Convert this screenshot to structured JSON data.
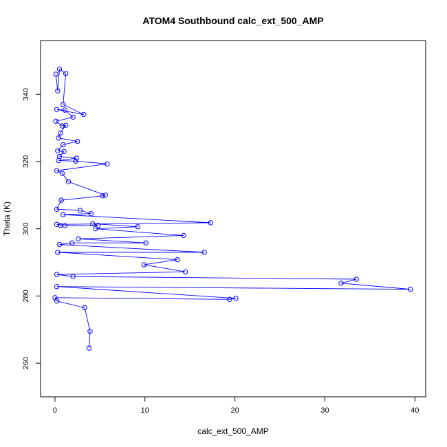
{
  "chart_data": {
    "type": "line",
    "title": "ATOM4 Southbound calc_ext_500_AMP",
    "xlabel": "calc_ext_500_AMP",
    "ylabel": "Theta (K)",
    "xlim": [
      -1.6,
      41.2
    ],
    "ylim": [
      250,
      356
    ],
    "x_ticks": [
      0,
      10,
      20,
      30,
      40
    ],
    "y_ticks": [
      260,
      280,
      300,
      320,
      340
    ],
    "grid": false,
    "legend": "none",
    "colors": {
      "series": "#0000ff",
      "axes": "#000000",
      "background": "#ffffff"
    },
    "series": [
      {
        "marker": "open-circle",
        "points": [
          [
            0.1,
            346.0
          ],
          [
            0.3,
            341.0
          ],
          [
            0.5,
            347.5
          ],
          [
            1.2,
            346.2
          ],
          [
            0.9,
            337.0
          ],
          [
            3.2,
            334.0
          ],
          [
            0.2,
            335.5
          ],
          [
            1.1,
            335.3
          ],
          [
            2.0,
            333.2
          ],
          [
            0.1,
            332.0
          ],
          [
            0.8,
            330.6
          ],
          [
            1.2,
            330.8
          ],
          [
            0.6,
            328.5
          ],
          [
            0.4,
            327.0
          ],
          [
            2.5,
            326.0
          ],
          [
            0.9,
            325.0
          ],
          [
            0.3,
            323.2
          ],
          [
            1.0,
            323.0
          ],
          [
            0.5,
            321.5
          ],
          [
            2.4,
            321.0
          ],
          [
            0.4,
            320.3
          ],
          [
            2.3,
            320.1
          ],
          [
            5.8,
            319.3
          ],
          [
            0.2,
            317.3
          ],
          [
            0.8,
            316.5
          ],
          [
            1.5,
            314.0
          ],
          [
            5.6,
            310.0
          ],
          [
            5.3,
            309.8
          ],
          [
            0.7,
            308.5
          ],
          [
            0.2,
            305.8
          ],
          [
            2.8,
            305.5
          ],
          [
            4.0,
            304.5
          ],
          [
            0.9,
            304.2
          ],
          [
            17.3,
            301.8
          ],
          [
            0.2,
            301.3
          ],
          [
            0.6,
            301.0
          ],
          [
            1.1,
            300.9
          ],
          [
            4.8,
            301.0
          ],
          [
            4.2,
            301.5
          ],
          [
            9.2,
            300.6
          ],
          [
            4.5,
            300.0
          ],
          [
            14.3,
            298.0
          ],
          [
            2.6,
            297.0
          ],
          [
            10.1,
            295.8
          ],
          [
            1.9,
            295.8
          ],
          [
            0.5,
            295.3
          ],
          [
            16.6,
            293.0
          ],
          [
            0.3,
            293.0
          ],
          [
            13.6,
            290.8
          ],
          [
            9.9,
            289.3
          ],
          [
            14.5,
            287.2
          ],
          [
            0.2,
            286.4
          ],
          [
            2.0,
            285.8
          ],
          [
            33.5,
            285.0
          ],
          [
            31.8,
            283.8
          ],
          [
            39.5,
            282.0
          ],
          [
            0.2,
            282.8
          ],
          [
            20.1,
            279.3
          ],
          [
            19.4,
            279.0
          ],
          [
            0.0,
            279.5
          ],
          [
            0.2,
            278.5
          ],
          [
            3.3,
            276.5
          ],
          [
            3.9,
            269.5
          ],
          [
            3.8,
            264.5
          ]
        ]
      }
    ]
  }
}
